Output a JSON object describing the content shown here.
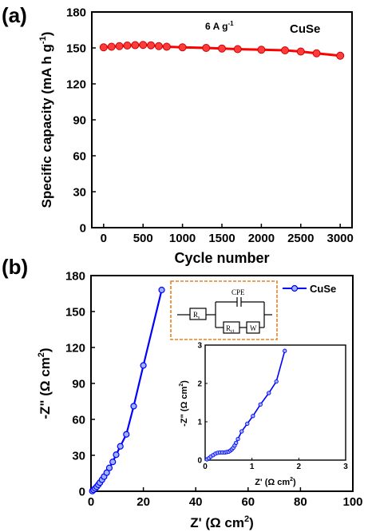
{
  "chart_data": [
    {
      "panel_label": "(a)",
      "type": "line",
      "annotation": "6 A g",
      "annotation_sup": "-1",
      "series_label": "CuSe",
      "xlabel": "Cycle number",
      "ylabel": "Specific capacity (mA h g",
      "ylabel_sup": "-1",
      "ylabel_end": ")",
      "xlim": [
        -150,
        3150
      ],
      "ylim": [
        0,
        180
      ],
      "xticks": [
        0,
        500,
        1000,
        1500,
        2000,
        2500,
        3000
      ],
      "yticks": [
        0,
        30,
        60,
        90,
        120,
        150,
        180
      ],
      "color": "#ff0000",
      "series": [
        {
          "x": [
            0,
            100,
            200,
            300,
            400,
            500,
            600,
            700,
            800,
            1000,
            1300,
            1500,
            1700,
            2000,
            2300,
            2500,
            2700,
            3000
          ],
          "y": [
            150.5,
            151,
            151.5,
            152,
            152.3,
            152.5,
            152.2,
            151.5,
            151,
            150.5,
            150,
            149.5,
            149,
            148.5,
            148,
            147,
            145.5,
            143.5
          ]
        }
      ]
    },
    {
      "panel_label": "(b)",
      "type": "scatter",
      "xlabel": "Z' (Ω cm",
      "xlabel_sup": "2",
      "xlabel_end": ")",
      "ylabel": "-Z\" (Ω cm",
      "ylabel_sup": "2",
      "ylabel_end": ")",
      "xlim": [
        0,
        100
      ],
      "ylim": [
        0,
        180
      ],
      "xticks": [
        0,
        20,
        40,
        60,
        80,
        100
      ],
      "yticks": [
        0,
        30,
        60,
        90,
        120,
        150,
        180
      ],
      "legend": "CuSe",
      "legend_position": "top-right",
      "color": "#0000ff",
      "series": [
        {
          "name": "CuSe",
          "x": [
            0.5,
            1.0,
            1.6,
            2.2,
            2.8,
            3.4,
            4.2,
            5.0,
            6.0,
            7.0,
            8.3,
            9.6,
            11.2,
            13.5,
            16.3,
            20.0,
            27.0
          ],
          "y": [
            0.2,
            1.2,
            2.4,
            3.8,
            5.4,
            7.2,
            9.6,
            12.2,
            15.5,
            19.5,
            24.5,
            30.5,
            37.5,
            47.5,
            71.0,
            105.0,
            168.0
          ]
        }
      ],
      "circuit": {
        "labels": [
          "CPE",
          "R",
          "R",
          "W"
        ],
        "subs": [
          "s",
          "ct"
        ]
      },
      "inset": {
        "xlabel": "Z' (Ω cm",
        "xlabel_sup": "2",
        "xlabel_end": ")",
        "ylabel": "-Z\" (Ω cm",
        "ylabel_sup": "2",
        "ylabel_end": ")",
        "xlim": [
          0,
          3
        ],
        "ylim": [
          0,
          3
        ],
        "xticks": [
          0,
          1,
          2,
          3
        ],
        "yticks": [
          0,
          1,
          2,
          3
        ],
        "x": [
          0.04,
          0.08,
          0.12,
          0.17,
          0.22,
          0.27,
          0.32,
          0.37,
          0.42,
          0.46,
          0.5,
          0.54,
          0.57,
          0.6,
          0.63,
          0.66,
          0.7,
          0.78,
          0.9,
          1.02,
          1.18,
          1.36,
          1.52,
          1.7
        ],
        "y": [
          0.02,
          0.05,
          0.09,
          0.13,
          0.17,
          0.19,
          0.2,
          0.2,
          0.2,
          0.21,
          0.22,
          0.25,
          0.28,
          0.32,
          0.38,
          0.45,
          0.55,
          0.75,
          0.95,
          1.15,
          1.45,
          1.75,
          2.05,
          2.85
        ]
      }
    }
  ]
}
